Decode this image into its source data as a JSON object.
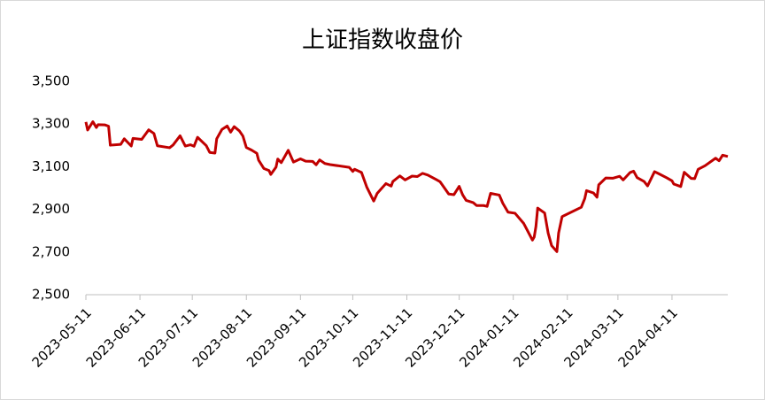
{
  "chart_data": {
    "type": "line",
    "title": "上证指数收盘价",
    "x": [
      "2023-05-11",
      "2023-05-12",
      "2023-05-15",
      "2023-05-17",
      "2023-05-18",
      "2023-05-22",
      "2023-05-24",
      "2023-05-25",
      "2023-05-31",
      "2023-06-02",
      "2023-06-06",
      "2023-06-07",
      "2023-06-12",
      "2023-06-16",
      "2023-06-19",
      "2023-06-21",
      "2023-06-28",
      "2023-06-30",
      "2023-07-04",
      "2023-07-07",
      "2023-07-10",
      "2023-07-12",
      "2023-07-14",
      "2023-07-19",
      "2023-07-21",
      "2023-07-24",
      "2023-07-25",
      "2023-07-28",
      "2023-07-31",
      "2023-08-02",
      "2023-08-04",
      "2023-08-07",
      "2023-08-09",
      "2023-08-11",
      "2023-08-14",
      "2023-08-17",
      "2023-08-18",
      "2023-08-21",
      "2023-08-24",
      "2023-08-25",
      "2023-08-28",
      "2023-08-29",
      "2023-08-31",
      "2023-09-04",
      "2023-09-07",
      "2023-09-11",
      "2023-09-14",
      "2023-09-18",
      "2023-09-20",
      "2023-09-22",
      "2023-09-25",
      "2023-09-28",
      "2023-10-09",
      "2023-10-11",
      "2023-10-12",
      "2023-10-16",
      "2023-10-19",
      "2023-10-23",
      "2023-10-25",
      "2023-10-30",
      "2023-11-02",
      "2023-11-03",
      "2023-11-07",
      "2023-11-10",
      "2023-11-14",
      "2023-11-17",
      "2023-11-20",
      "2023-11-23",
      "2023-11-28",
      "2023-11-30",
      "2023-12-05",
      "2023-12-08",
      "2023-12-11",
      "2023-12-13",
      "2023-12-15",
      "2023-12-19",
      "2023-12-21",
      "2023-12-25",
      "2023-12-27",
      "2023-12-29",
      "2024-01-03",
      "2024-01-05",
      "2024-01-08",
      "2024-01-12",
      "2024-01-17",
      "2024-01-22",
      "2024-01-23",
      "2024-01-24",
      "2024-01-25",
      "2024-01-29",
      "2024-01-31",
      "2024-02-02",
      "2024-02-05",
      "2024-02-06",
      "2024-02-08",
      "2024-02-19",
      "2024-02-21",
      "2024-02-22",
      "2024-02-26",
      "2024-02-28",
      "2024-02-29",
      "2024-03-04",
      "2024-03-08",
      "2024-03-12",
      "2024-03-14",
      "2024-03-18",
      "2024-03-20",
      "2024-03-22",
      "2024-03-26",
      "2024-03-28",
      "2024-04-01",
      "2024-04-03",
      "2024-04-08",
      "2024-04-11",
      "2024-04-12",
      "2024-04-16",
      "2024-04-18",
      "2024-04-22",
      "2024-04-24",
      "2024-04-26",
      "2024-04-30",
      "2024-05-06",
      "2024-05-08",
      "2024-05-10",
      "2024-05-13"
    ],
    "series": [
      {
        "color": "#c00000",
        "values": [
          3310,
          3272,
          3311,
          3284,
          3297,
          3296,
          3290,
          3201,
          3205,
          3231,
          3197,
          3233,
          3228,
          3273,
          3256,
          3198,
          3189,
          3202,
          3245,
          3197,
          3203,
          3196,
          3238,
          3199,
          3167,
          3164,
          3231,
          3275,
          3291,
          3262,
          3288,
          3268,
          3244,
          3190,
          3178,
          3163,
          3131,
          3092,
          3082,
          3064,
          3098,
          3136,
          3119,
          3177,
          3122,
          3137,
          3126,
          3125,
          3109,
          3132,
          3115,
          3110,
          3097,
          3078,
          3088,
          3073,
          3005,
          2939,
          2975,
          3021,
          3009,
          3031,
          3057,
          3038,
          3056,
          3054,
          3069,
          3061,
          3039,
          3030,
          2972,
          2969,
          3008,
          2968,
          2942,
          2932,
          2918,
          2918,
          2914,
          2975,
          2967,
          2929,
          2887,
          2882,
          2834,
          2756,
          2770,
          2820,
          2906,
          2883,
          2789,
          2730,
          2702,
          2789,
          2866,
          2910,
          2951,
          2988,
          2977,
          2957,
          3015,
          3047,
          3046,
          3055,
          3038,
          3073,
          3079,
          3049,
          3031,
          3010,
          3077,
          3069,
          3048,
          3034,
          3019,
          3007,
          3074,
          3045,
          3044,
          3088,
          3105,
          3140,
          3128,
          3154,
          3148
        ]
      }
    ],
    "xlim": [
      "2023-05-11",
      "2024-05-13"
    ],
    "xticks": [
      "2023-05-11",
      "2023-06-11",
      "2023-07-11",
      "2023-08-11",
      "2023-09-11",
      "2023-10-11",
      "2023-11-11",
      "2023-12-11",
      "2024-01-11",
      "2024-02-11",
      "2024-03-11",
      "2024-04-11"
    ],
    "ylim": [
      2500,
      3500
    ],
    "yticks": [
      {
        "value": 2500,
        "label": "2,500"
      },
      {
        "value": 2700,
        "label": "2,700"
      },
      {
        "value": 2900,
        "label": "2,900"
      },
      {
        "value": 3100,
        "label": "3,100"
      },
      {
        "value": 3300,
        "label": "3,300"
      },
      {
        "value": 3500,
        "label": "3,500"
      }
    ]
  }
}
